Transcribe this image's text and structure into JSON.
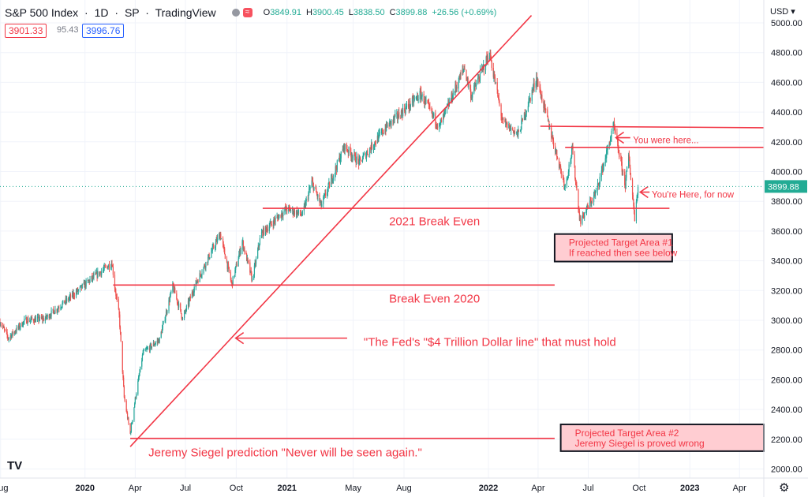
{
  "header": {
    "symbol": "S&P 500 Index",
    "interval": "1D",
    "exchange": "SP",
    "source": "TradingView",
    "ohlc": [
      {
        "k": "O",
        "v": "3849.91"
      },
      {
        "k": "H",
        "v": "3900.45"
      },
      {
        "k": "L",
        "v": "3838.50"
      },
      {
        "k": "C",
        "v": "3899.88"
      },
      {
        "k": "",
        "v": "+26.56 (+0.69%)"
      }
    ],
    "bid": "3901.33",
    "spread": "95.43",
    "ask": "3996.76",
    "currency": "USD",
    "icons": [
      "dot-icon",
      "wave-icon",
      "tradingview-logo-icon",
      "gear-icon"
    ]
  },
  "chart_data": {
    "type": "candlestick",
    "title": "S&P 500 Index · 1D · SP",
    "y_axis": {
      "range": [
        1900,
        5100
      ],
      "ticks": [
        2000,
        2200,
        2400,
        2600,
        2800,
        3000,
        3200,
        3400,
        3600,
        3800,
        4000,
        4200,
        4400,
        4600,
        4800,
        5000
      ],
      "tick_labels": [
        "2000.00",
        "2200.00",
        "2400.00",
        "2600.00",
        "2800.00",
        "3000.00",
        "3200.00",
        "3400.00",
        "3600.00",
        "3800.00",
        "4000.00",
        "4200.00",
        "4400.00",
        "4600.00",
        "4800.00",
        "5000.00"
      ],
      "last_price": 3899.88,
      "last_price_label": "3899.88"
    },
    "x_axis": {
      "range": [
        "2019-07-31",
        "2023-05-15"
      ],
      "ticks": [
        {
          "date": "2019-08-01",
          "label": "Aug"
        },
        {
          "date": "2020-01-01",
          "label": "2020",
          "bold": true
        },
        {
          "date": "2020-04-01",
          "label": "Apr"
        },
        {
          "date": "2020-07-01",
          "label": "Jul"
        },
        {
          "date": "2020-10-01",
          "label": "Oct"
        },
        {
          "date": "2021-01-01",
          "label": "2021",
          "bold": true
        },
        {
          "date": "2021-05-01",
          "label": "May"
        },
        {
          "date": "2021-08-01",
          "label": "Aug"
        },
        {
          "date": "2022-01-01",
          "label": "2022",
          "bold": true
        },
        {
          "date": "2022-04-01",
          "label": "Apr"
        },
        {
          "date": "2022-07-01",
          "label": "Jul"
        },
        {
          "date": "2022-10-01",
          "label": "Oct"
        },
        {
          "date": "2023-01-01",
          "label": "2023",
          "bold": true
        },
        {
          "date": "2023-04-01",
          "label": "Apr"
        }
      ]
    },
    "colors": {
      "up": "#26a69a",
      "down": "#ef5350",
      "drawing": "#f23645",
      "annotation_text": "#f23645",
      "box_fill": "#ffcdd2",
      "box_border": "#131722",
      "price_label_bg": "#22ab94",
      "grid": "#f0f3fa"
    },
    "grid": true,
    "price_path": [
      {
        "date": "2019-07-31",
        "close": 2990
      },
      {
        "date": "2019-08-15",
        "close": 2880
      },
      {
        "date": "2019-09-15",
        "close": 3000
      },
      {
        "date": "2019-10-20",
        "close": 3010
      },
      {
        "date": "2019-12-01",
        "close": 3140
      },
      {
        "date": "2020-01-10",
        "close": 3270
      },
      {
        "date": "2020-02-19",
        "close": 3386
      },
      {
        "date": "2020-02-24",
        "close": 3225
      },
      {
        "date": "2020-03-03",
        "close": 3030
      },
      {
        "date": "2020-03-12",
        "close": 2480
      },
      {
        "date": "2020-03-23",
        "close": 2237
      },
      {
        "date": "2020-04-01",
        "close": 2470
      },
      {
        "date": "2020-04-15",
        "close": 2780
      },
      {
        "date": "2020-05-15",
        "close": 2870
      },
      {
        "date": "2020-06-08",
        "close": 3230
      },
      {
        "date": "2020-06-26",
        "close": 3010
      },
      {
        "date": "2020-07-20",
        "close": 3250
      },
      {
        "date": "2020-09-02",
        "close": 3580
      },
      {
        "date": "2020-09-23",
        "close": 3240
      },
      {
        "date": "2020-10-12",
        "close": 3530
      },
      {
        "date": "2020-10-30",
        "close": 3270
      },
      {
        "date": "2020-11-15",
        "close": 3580
      },
      {
        "date": "2020-12-31",
        "close": 3750
      },
      {
        "date": "2021-01-29",
        "close": 3710
      },
      {
        "date": "2021-02-15",
        "close": 3930
      },
      {
        "date": "2021-03-04",
        "close": 3770
      },
      {
        "date": "2021-04-15",
        "close": 4170
      },
      {
        "date": "2021-05-12",
        "close": 4060
      },
      {
        "date": "2021-06-30",
        "close": 4300
      },
      {
        "date": "2021-08-31",
        "close": 4520
      },
      {
        "date": "2021-10-04",
        "close": 4300
      },
      {
        "date": "2021-11-18",
        "close": 4700
      },
      {
        "date": "2021-12-01",
        "close": 4510
      },
      {
        "date": "2022-01-03",
        "close": 4797
      },
      {
        "date": "2022-01-27",
        "close": 4330
      },
      {
        "date": "2022-02-24",
        "close": 4250
      },
      {
        "date": "2022-03-29",
        "close": 4630
      },
      {
        "date": "2022-05-20",
        "close": 3900
      },
      {
        "date": "2022-06-02",
        "close": 4150
      },
      {
        "date": "2022-06-16",
        "close": 3666
      },
      {
        "date": "2022-07-15",
        "close": 3860
      },
      {
        "date": "2022-08-16",
        "close": 4305
      },
      {
        "date": "2022-09-06",
        "close": 3910
      },
      {
        "date": "2022-09-12",
        "close": 4110
      },
      {
        "date": "2022-09-23",
        "close": 3693
      },
      {
        "date": "2022-09-29",
        "close": 3899.88
      }
    ],
    "lines": [
      {
        "name": "fed-trendline",
        "from": {
          "date": "2020-03-23",
          "price": 2150
        },
        "to": {
          "date": "2022-03-20",
          "price": 5050
        }
      },
      {
        "name": "break-even-2020-line",
        "from": {
          "date": "2020-02-21",
          "price": 3237
        },
        "to": {
          "date": "2022-05-01",
          "price": 3237
        }
      },
      {
        "name": "break-even-2021-line",
        "from": {
          "date": "2020-11-18",
          "price": 3753
        },
        "to": {
          "date": "2022-11-25",
          "price": 3753
        }
      },
      {
        "name": "siegel-line",
        "from": {
          "date": "2020-03-23",
          "price": 2206
        },
        "to": {
          "date": "2022-05-01",
          "price": 2206
        }
      },
      {
        "name": "resistance-line-upper",
        "from": {
          "date": "2022-04-05",
          "price": 4305
        },
        "to": {
          "date": "2023-05-15",
          "price": 4295
        }
      },
      {
        "name": "resistance-line-lower",
        "from": {
          "date": "2022-05-20",
          "price": 4163
        },
        "to": {
          "date": "2023-05-15",
          "price": 4163
        }
      }
    ],
    "arrows": [
      {
        "name": "fed-arrow",
        "from": {
          "date": "2021-04-20",
          "price": 2880
        },
        "to": {
          "date": "2020-09-30",
          "price": 2880
        }
      },
      {
        "name": "you-were-here-arrow",
        "from": {
          "date": "2022-09-15",
          "price": 4228
        },
        "to": {
          "date": "2022-08-20",
          "price": 4228
        }
      },
      {
        "name": "youre-here-arrow",
        "from": {
          "date": "2022-10-20",
          "price": 3862
        },
        "to": {
          "date": "2022-10-03",
          "price": 3862
        }
      }
    ],
    "annotations": [
      {
        "name": "you-were-here-label",
        "text": "You were here...",
        "date": "2022-09-20",
        "price": 4218
      },
      {
        "name": "youre-here-label",
        "text": "You're Here, for now",
        "date": "2022-10-24",
        "price": 3852
      },
      {
        "name": "break-even-2021-label",
        "text": "2021 Break Even",
        "date": "2021-07-05",
        "price": 3666
      },
      {
        "name": "break-even-2020-label",
        "text": "Break Even 2020",
        "date": "2021-07-05",
        "price": 3147
      },
      {
        "name": "fed-label",
        "text": "\"The Fed's \"$4 Trillion Dollar line\" that must hold",
        "date": "2021-05-20",
        "price": 2854
      },
      {
        "name": "siegel-label",
        "text": "Jeremy Siegel prediction \"Never will be seen again.\"",
        "date": "2020-04-25",
        "price": 2112
      }
    ],
    "boxes": [
      {
        "name": "target-area-1",
        "date_from": "2022-05-01",
        "date_to": "2022-11-30",
        "price_top": 3580,
        "price_bottom": 3395,
        "lines": [
          "Projected Target Area #1",
          "If reached then see below"
        ]
      },
      {
        "name": "target-area-2",
        "date_from": "2022-05-12",
        "date_to": "2023-05-15",
        "price_top": 2300,
        "price_bottom": 2120,
        "lines": [
          "Projected Target Area #2",
          "Jeremy Siegel is proved wrong"
        ]
      }
    ]
  }
}
